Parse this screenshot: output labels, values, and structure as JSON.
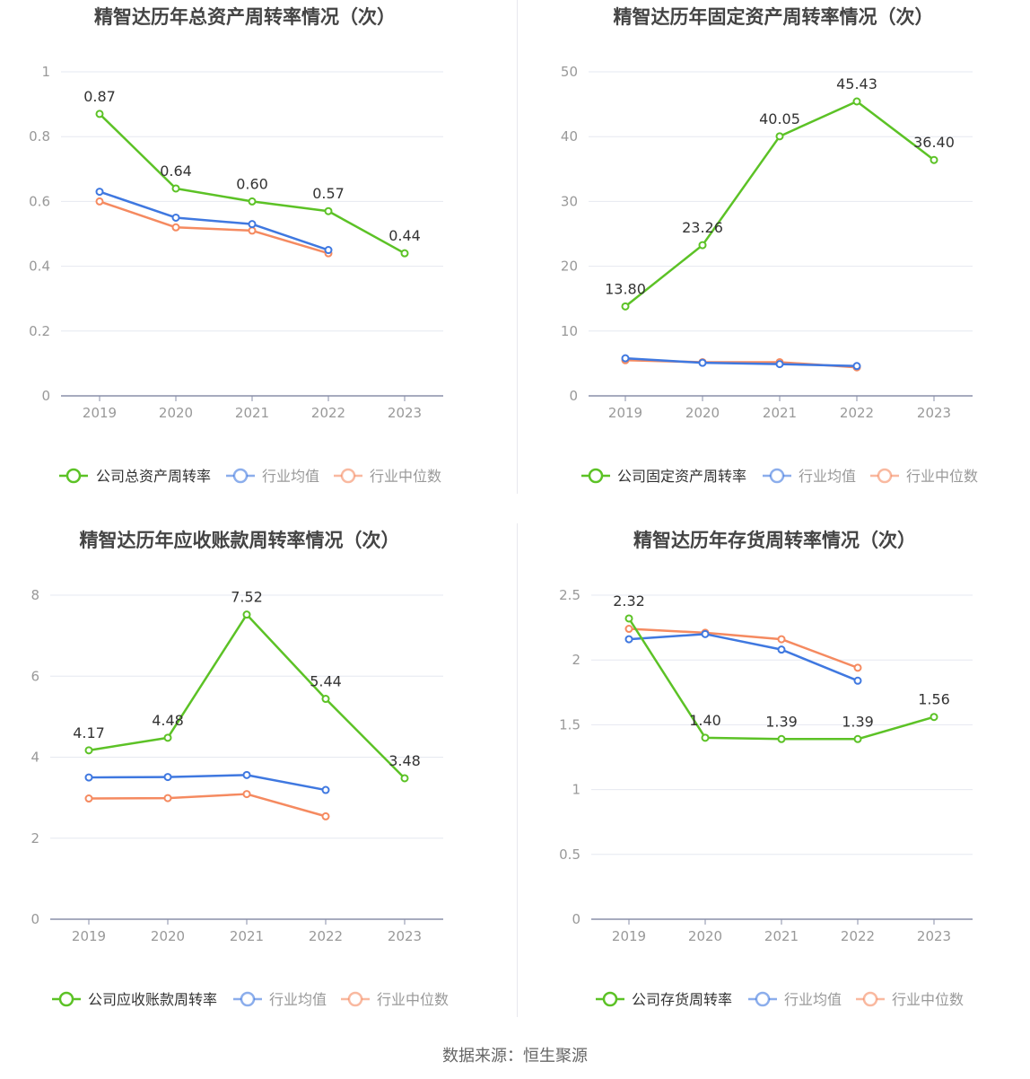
{
  "source": "数据来源：恒生聚源",
  "colors": {
    "company": "#5cc226",
    "average": "#3f78e0",
    "median": "#f58a60",
    "grid": "#e6e8f0",
    "axis": "#8a8fa8",
    "tick_text": "#999999",
    "title": "#444444"
  },
  "chart_data": [
    {
      "type": "line",
      "title": "精智达历年总资产周转率情况（次）",
      "categories": [
        "2019",
        "2020",
        "2021",
        "2022",
        "2023"
      ],
      "yticks": [
        "0",
        "0.2",
        "0.4",
        "0.6",
        "0.8",
        "1"
      ],
      "ylim": [
        0,
        1
      ],
      "series": [
        {
          "name": "公司总资产周转率",
          "values": [
            0.87,
            0.64,
            0.6,
            0.57,
            0.44
          ],
          "labels": [
            "0.87",
            "0.64",
            "0.60",
            "0.57",
            "0.44"
          ]
        },
        {
          "name": "行业均值",
          "values": [
            0.63,
            0.55,
            0.53,
            0.45,
            null
          ]
        },
        {
          "name": "行业中位数",
          "values": [
            0.6,
            0.52,
            0.51,
            0.44,
            null
          ]
        }
      ]
    },
    {
      "type": "line",
      "title": "精智达历年固定资产周转率情况（次）",
      "categories": [
        "2019",
        "2020",
        "2021",
        "2022",
        "2023"
      ],
      "yticks": [
        "0",
        "10",
        "20",
        "30",
        "40",
        "50"
      ],
      "ylim": [
        0,
        50
      ],
      "series": [
        {
          "name": "公司固定资产周转率",
          "values": [
            13.8,
            23.26,
            40.05,
            45.43,
            36.4
          ],
          "labels": [
            "13.80",
            "23.26",
            "40.05",
            "45.43",
            "36.40"
          ]
        },
        {
          "name": "行业均值",
          "values": [
            5.8,
            5.1,
            4.9,
            4.6,
            null
          ]
        },
        {
          "name": "行业中位数",
          "values": [
            5.5,
            5.2,
            5.2,
            4.4,
            null
          ]
        }
      ]
    },
    {
      "type": "line",
      "title": "精智达历年应收账款周转率情况（次）",
      "categories": [
        "2019",
        "2020",
        "2021",
        "2022",
        "2023"
      ],
      "yticks": [
        "0",
        "2",
        "4",
        "6",
        "8"
      ],
      "ylim": [
        0,
        8
      ],
      "series": [
        {
          "name": "公司应收账款周转率",
          "values": [
            4.17,
            4.48,
            7.52,
            5.44,
            3.48
          ],
          "labels": [
            "4.17",
            "4.48",
            "7.52",
            "5.44",
            "3.48"
          ]
        },
        {
          "name": "行业均值",
          "values": [
            3.5,
            3.51,
            3.56,
            3.19,
            null
          ]
        },
        {
          "name": "行业中位数",
          "values": [
            2.98,
            2.99,
            3.09,
            2.54,
            null
          ]
        }
      ]
    },
    {
      "type": "line",
      "title": "精智达历年存货周转率情况（次）",
      "categories": [
        "2019",
        "2020",
        "2021",
        "2022",
        "2023"
      ],
      "yticks": [
        "0",
        "0.5",
        "1",
        "1.5",
        "2",
        "2.5"
      ],
      "ylim": [
        0,
        2.5
      ],
      "series": [
        {
          "name": "公司存货周转率",
          "values": [
            2.32,
            1.4,
            1.39,
            1.39,
            1.56
          ],
          "labels": [
            "2.32",
            "1.40",
            "1.39",
            "1.39",
            "1.56"
          ]
        },
        {
          "name": "行业均值",
          "values": [
            2.16,
            2.2,
            2.08,
            1.84,
            null
          ]
        },
        {
          "name": "行业中位数",
          "values": [
            2.24,
            2.21,
            2.16,
            1.94,
            null
          ]
        }
      ]
    }
  ]
}
